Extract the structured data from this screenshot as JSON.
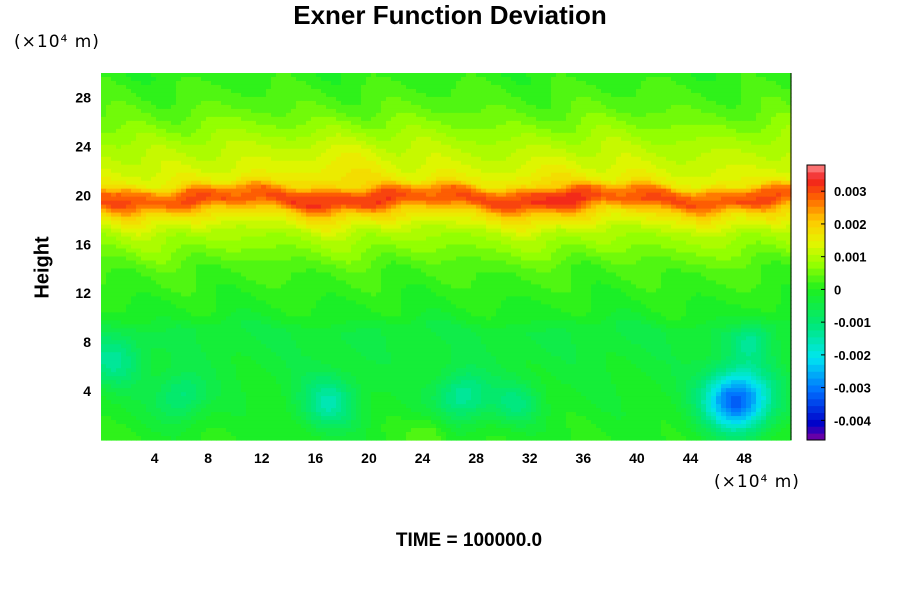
{
  "chart_data": {
    "type": "heatmap",
    "title": "Exner Function Deviation",
    "ylabel": "Height",
    "xunit": "(×10⁴ m)",
    "yunit": "(×10⁴ m)",
    "footer": "TIME = 100000.0",
    "xlim": [
      0,
      51.5
    ],
    "ylim": [
      0,
      30
    ],
    "x_ticks": [
      "4",
      "8",
      "12",
      "16",
      "20",
      "24",
      "28",
      "32",
      "36",
      "40",
      "44",
      "48"
    ],
    "y_ticks": [
      "4",
      "8",
      "12",
      "16",
      "20",
      "24",
      "28"
    ],
    "colorbar": {
      "range": [
        -0.0046,
        0.0038
      ],
      "tick_values": [
        0.003,
        0.002,
        0.001,
        0,
        -0.001,
        -0.002,
        -0.003,
        -0.004
      ],
      "tick_labels": [
        "0.003",
        "0.002",
        "0.001",
        "0",
        "-0.001",
        "-0.002",
        "-0.003",
        "-0.004"
      ]
    },
    "profile": [
      {
        "z": 0,
        "value": 0.0
      },
      {
        "z": 9,
        "value": -0.0004
      },
      {
        "z": 10,
        "value": -0.0001
      },
      {
        "z": 14,
        "value": 0.0003
      },
      {
        "z": 17,
        "value": 0.001
      },
      {
        "z": 18.5,
        "value": 0.0018
      },
      {
        "z": 19.5,
        "value": 0.003
      },
      {
        "z": 20.3,
        "value": 0.0027
      },
      {
        "z": 21,
        "value": 0.0016
      },
      {
        "z": 22,
        "value": 0.0013
      },
      {
        "z": 24,
        "value": 0.001
      },
      {
        "z": 27,
        "value": 0.0004
      },
      {
        "z": 30,
        "value": 0.0001
      }
    ],
    "anomalies": [
      {
        "x": 47.5,
        "z": 3.2,
        "sigma": 1.8,
        "value": -0.0032
      },
      {
        "x": 17.0,
        "z": 3.0,
        "sigma": 1.6,
        "value": -0.0013
      },
      {
        "x": 27.0,
        "z": 3.5,
        "sigma": 1.5,
        "value": -0.0013
      },
      {
        "x": 6.0,
        "z": 3.5,
        "sigma": 1.4,
        "value": -0.001
      },
      {
        "x": 1.0,
        "z": 6.5,
        "sigma": 1.5,
        "value": -0.001
      },
      {
        "x": 31.0,
        "z": 3.0,
        "sigma": 1.2,
        "value": -0.0009
      },
      {
        "x": 48.5,
        "z": 8.0,
        "sigma": 1.1,
        "value": -0.0008
      },
      {
        "x": 24.5,
        "z": 0.5,
        "sigma": 1.0,
        "value": 0.0005
      },
      {
        "x": 33.5,
        "z": 20.0,
        "sigma": 2.0,
        "value": 0.0004
      },
      {
        "x": 18.0,
        "z": 22.0,
        "sigma": 2.5,
        "value": 0.0004
      }
    ]
  }
}
